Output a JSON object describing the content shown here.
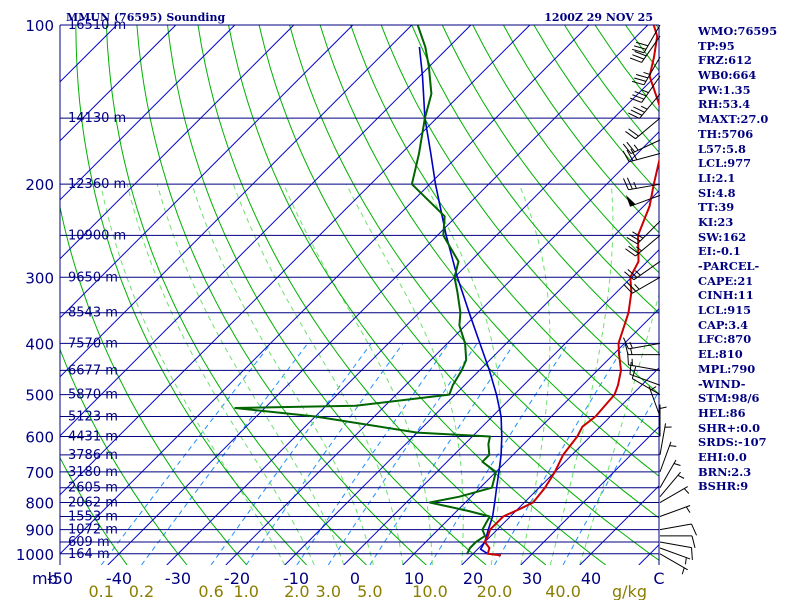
{
  "header": {
    "station": "MMUN (76595) Sounding",
    "time": "1200Z 29 NOV 25"
  },
  "stats": [
    "WMO:76595",
    "TP:95",
    "FRZ:612",
    "WB0:664",
    "PW:1.35",
    "RH:53.4",
    "MAXT:27.0",
    "TH:5706",
    "L57:5.8",
    "LCL:977",
    "LI:2.1",
    "SI:4.8",
    "TT:39",
    "KI:23",
    "SW:162",
    "EI:-0.1",
    "-PARCEL-",
    "CAPE:21",
    "CINH:11",
    "LCL:915",
    "CAP:3.4",
    "LFC:870",
    "EL:810",
    "MPL:790",
    "-WIND-",
    "STM:98/6",
    "HEL:86",
    "SHR+:0.0",
    "SRDS:-107",
    "EHI:0.0",
    "BRN:2.3",
    "BSHR:9"
  ],
  "colors": {
    "isobar": "#000080",
    "isotherm": "#0000cd",
    "dry_adiabat": "#00b000",
    "moist_adiabat": "#70e070",
    "mixing_ratio": "#1e90ff",
    "temperature": "#cc0000",
    "dewpoint": "#006400",
    "parcel": "#0000c0",
    "wind": "#000000"
  },
  "chart_data": {
    "type": "skew-t",
    "temp_unit_label": "mb",
    "mixing_ratio_unit": "g/kg",
    "x_ticks": [
      -50,
      -40,
      -30,
      -20,
      -10,
      0,
      10,
      20,
      30,
      40,
      "C"
    ],
    "mixing_ratio_ticks": [
      "0.1",
      "0.2",
      "0.6",
      "1.0",
      "2.0",
      "3.0",
      "5.0",
      "10.0",
      "20.0",
      "40.0"
    ],
    "pressure_levels": [
      {
        "p": 100,
        "h": "16510 m",
        "show_p": true
      },
      {
        "p": 150,
        "h": "14130 m",
        "show_p": false
      },
      {
        "p": 200,
        "h": "12360 m",
        "show_p": true
      },
      {
        "p": 250,
        "h": "10900 m",
        "show_p": false
      },
      {
        "p": 300,
        "h": "9650 m",
        "show_p": true
      },
      {
        "p": 350,
        "h": "8543 m",
        "show_p": false
      },
      {
        "p": 400,
        "h": "7570 m",
        "show_p": true
      },
      {
        "p": 450,
        "h": "6677 m",
        "show_p": false
      },
      {
        "p": 500,
        "h": "5870 m",
        "show_p": true
      },
      {
        "p": 550,
        "h": "5123 m",
        "show_p": false
      },
      {
        "p": 600,
        "h": "4431 m",
        "show_p": true
      },
      {
        "p": 650,
        "h": "3786 m",
        "show_p": false
      },
      {
        "p": 700,
        "h": "3180 m",
        "show_p": true
      },
      {
        "p": 750,
        "h": "2605 m",
        "show_p": false
      },
      {
        "p": 800,
        "h": "2062 m",
        "show_p": true
      },
      {
        "p": 850,
        "h": "1553 m",
        "show_p": false
      },
      {
        "p": 900,
        "h": "1072 m",
        "show_p": true
      },
      {
        "p": 950,
        "h": "609 m",
        "show_p": false
      },
      {
        "p": 1000,
        "h": "164 m",
        "show_p": true
      }
    ],
    "temperature": [
      [
        1007,
        25.0
      ],
      [
        1000,
        22.5
      ],
      [
        975,
        21.8
      ],
      [
        950,
        20.0
      ],
      [
        925,
        19.5
      ],
      [
        900,
        18.8
      ],
      [
        850,
        18.8
      ],
      [
        820,
        20.5
      ],
      [
        800,
        21.5
      ],
      [
        750,
        21.0
      ],
      [
        700,
        20.0
      ],
      [
        650,
        18.5
      ],
      [
        600,
        17.8
      ],
      [
        575,
        17.0
      ],
      [
        550,
        17.5
      ],
      [
        500,
        17.0
      ],
      [
        480,
        16.0
      ],
      [
        450,
        14.0
      ],
      [
        420,
        11.0
      ],
      [
        400,
        9.0
      ],
      [
        350,
        5.5
      ],
      [
        320,
        2.5
      ],
      [
        300,
        -0.2
      ],
      [
        280,
        -1.5
      ],
      [
        250,
        -6.0
      ],
      [
        220,
        -9.0
      ],
      [
        200,
        -12.0
      ],
      [
        175,
        -16.0
      ],
      [
        150,
        -21.5
      ],
      [
        135,
        -27.0
      ],
      [
        125,
        -31.0
      ],
      [
        115,
        -33.5
      ],
      [
        105,
        -36.5
      ],
      [
        100,
        -39.0
      ]
    ],
    "dewpoint": [
      [
        1000,
        19.0
      ],
      [
        975,
        18.5
      ],
      [
        950,
        18.5
      ],
      [
        925,
        19.0
      ],
      [
        900,
        17.5
      ],
      [
        875,
        17.0
      ],
      [
        850,
        16.5
      ],
      [
        830,
        12.0
      ],
      [
        800,
        4.0
      ],
      [
        780,
        8.0
      ],
      [
        750,
        12.0
      ],
      [
        700,
        10.0
      ],
      [
        670,
        6.0
      ],
      [
        650,
        6.0
      ],
      [
        620,
        4.0
      ],
      [
        600,
        3.0
      ],
      [
        590,
        -10.0
      ],
      [
        550,
        -30.0
      ],
      [
        530,
        -45.0
      ],
      [
        525,
        -25.0
      ],
      [
        500,
        -11.0
      ],
      [
        480,
        -12.0
      ],
      [
        450,
        -13.0
      ],
      [
        430,
        -14.0
      ],
      [
        400,
        -17.0
      ],
      [
        370,
        -21.0
      ],
      [
        350,
        -23.0
      ],
      [
        320,
        -27.0
      ],
      [
        300,
        -30.0
      ],
      [
        280,
        -32.0
      ],
      [
        250,
        -39.0
      ],
      [
        230,
        -42.0
      ],
      [
        200,
        -53.0
      ],
      [
        175,
        -57.0
      ],
      [
        150,
        -62.0
      ],
      [
        135,
        -65.0
      ],
      [
        120,
        -70.0
      ],
      [
        110,
        -74.0
      ],
      [
        100,
        -79.0
      ]
    ],
    "parcel": [
      [
        1000,
        22.5
      ],
      [
        980,
        20.5
      ],
      [
        950,
        20.0
      ],
      [
        900,
        18.5
      ],
      [
        850,
        17.0
      ],
      [
        800,
        15.0
      ],
      [
        750,
        12.8
      ],
      [
        700,
        10.5
      ],
      [
        650,
        8.0
      ],
      [
        600,
        5.0
      ],
      [
        550,
        1.5
      ],
      [
        500,
        -3.0
      ],
      [
        450,
        -8.3
      ],
      [
        400,
        -14.5
      ],
      [
        350,
        -21.5
      ],
      [
        300,
        -29.5
      ],
      [
        250,
        -38.5
      ],
      [
        200,
        -49.0
      ],
      [
        175,
        -55.0
      ],
      [
        150,
        -62.0
      ],
      [
        125,
        -69.5
      ],
      [
        110,
        -75.0
      ]
    ],
    "wind_barbs": [
      {
        "p": 1000,
        "dir": 120,
        "kt": 5
      },
      {
        "p": 975,
        "dir": 110,
        "kt": 5
      },
      {
        "p": 950,
        "dir": 100,
        "kt": 10
      },
      {
        "p": 925,
        "dir": 90,
        "kt": 10
      },
      {
        "p": 900,
        "dir": 80,
        "kt": 10
      },
      {
        "p": 850,
        "dir": 70,
        "kt": 5
      },
      {
        "p": 800,
        "dir": 60,
        "kt": 5
      },
      {
        "p": 780,
        "dir": 40,
        "kt": 5
      },
      {
        "p": 750,
        "dir": 30,
        "kt": 5
      },
      {
        "p": 700,
        "dir": 20,
        "kt": 5
      },
      {
        "p": 650,
        "dir": 10,
        "kt": 5
      },
      {
        "p": 600,
        "dir": 360,
        "kt": 5
      },
      {
        "p": 550,
        "dir": 340,
        "kt": 5
      },
      {
        "p": 500,
        "dir": 300,
        "kt": 10
      },
      {
        "p": 480,
        "dir": 290,
        "kt": 10
      },
      {
        "p": 450,
        "dir": 280,
        "kt": 15
      },
      {
        "p": 420,
        "dir": 270,
        "kt": 15
      },
      {
        "p": 400,
        "dir": 260,
        "kt": 15
      },
      {
        "p": 300,
        "dir": 240,
        "kt": 25
      },
      {
        "p": 280,
        "dir": 235,
        "kt": 25
      },
      {
        "p": 250,
        "dir": 230,
        "kt": 25
      },
      {
        "p": 235,
        "dir": 225,
        "kt": 30
      },
      {
        "p": 210,
        "dir": 250,
        "kt": 50
      },
      {
        "p": 200,
        "dir": 260,
        "kt": 25
      },
      {
        "p": 175,
        "dir": 255,
        "kt": 30
      },
      {
        "p": 165,
        "dir": 245,
        "kt": 25
      },
      {
        "p": 150,
        "dir": 230,
        "kt": 20
      },
      {
        "p": 135,
        "dir": 220,
        "kt": 35
      },
      {
        "p": 125,
        "dir": 215,
        "kt": 35
      },
      {
        "p": 115,
        "dir": 210,
        "kt": 35
      },
      {
        "p": 105,
        "dir": 215,
        "kt": 30
      },
      {
        "p": 100,
        "dir": 210,
        "kt": 30
      }
    ]
  }
}
